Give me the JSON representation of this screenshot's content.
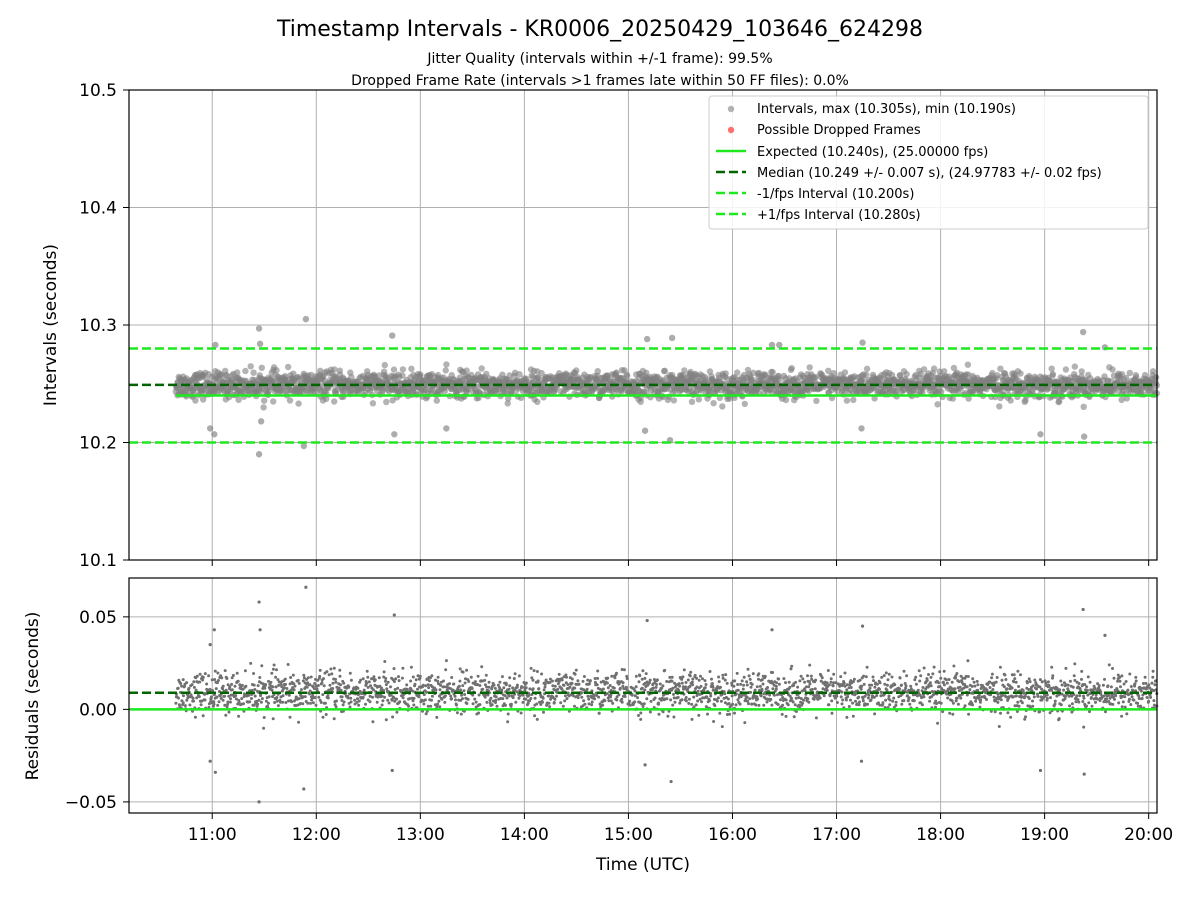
{
  "chart_data": [
    {
      "type": "scatter",
      "title": "Timestamp Intervals - KR0006_20250429_103646_624298",
      "subtitle": [
        "Jitter Quality (intervals within +/-1 frame): 99.5%",
        "Dropped Frame Rate (intervals >1 frames late within 50 FF files): 0.0%"
      ],
      "xlabel": "",
      "ylabel": "Intervals (seconds)",
      "x_time_range_hours": [
        10.2,
        20.08
      ],
      "xticks": [
        "11:00",
        "12:00",
        "13:00",
        "14:00",
        "15:00",
        "16:00",
        "17:00",
        "18:00",
        "19:00",
        "20:00"
      ],
      "ylim": [
        10.1,
        10.5
      ],
      "yticks": [
        "10.1",
        "10.2",
        "10.3",
        "10.4",
        "10.5"
      ],
      "grid": true,
      "legend_position": "top-right",
      "legend": [
        "Intervals, max (10.305s), min (10.190s)",
        "Possible Dropped Frames",
        "Expected (10.240s), (25.00000 fps)",
        "Median (10.249 +/- 0.007 s), (24.97783 +/- 0.02 fps)",
        "-1/fps Interval (10.200s)",
        "+1/fps Interval (10.280s)"
      ],
      "lines": {
        "expected": 10.24,
        "median": 10.249,
        "lower": 10.2,
        "upper": 10.28
      },
      "series": [
        {
          "name": "Intervals",
          "color": "#808080",
          "summary": {
            "start_hour": 10.65,
            "end_hour": 20.08,
            "max": 10.305,
            "min": 10.19,
            "median": 10.249
          },
          "outliers": [
            {
              "x": 10.98,
              "y": 10.212
            },
            {
              "x": 11.02,
              "y": 10.207
            },
            {
              "x": 11.03,
              "y": 10.283
            },
            {
              "x": 11.45,
              "y": 10.297
            },
            {
              "x": 11.46,
              "y": 10.284
            },
            {
              "x": 11.45,
              "y": 10.19
            },
            {
              "x": 11.47,
              "y": 10.218
            },
            {
              "x": 11.9,
              "y": 10.305
            },
            {
              "x": 11.88,
              "y": 10.197
            },
            {
              "x": 12.73,
              "y": 10.291
            },
            {
              "x": 12.75,
              "y": 10.207
            },
            {
              "x": 13.25,
              "y": 10.212
            },
            {
              "x": 15.18,
              "y": 10.288
            },
            {
              "x": 15.16,
              "y": 10.21
            },
            {
              "x": 15.42,
              "y": 10.289
            },
            {
              "x": 15.4,
              "y": 10.202
            },
            {
              "x": 16.38,
              "y": 10.283
            },
            {
              "x": 16.45,
              "y": 10.283
            },
            {
              "x": 17.25,
              "y": 10.285
            },
            {
              "x": 17.24,
              "y": 10.212
            },
            {
              "x": 19.37,
              "y": 10.294
            },
            {
              "x": 19.38,
              "y": 10.205
            },
            {
              "x": 18.96,
              "y": 10.207
            },
            {
              "x": 19.58,
              "y": 10.281
            }
          ]
        },
        {
          "name": "Possible Dropped Frames",
          "color": "#ff6060",
          "values": []
        }
      ]
    },
    {
      "type": "scatter",
      "title": "",
      "xlabel": "Time (UTC)",
      "ylabel": "Residuals (seconds)",
      "ylim": [
        -0.056,
        0.071
      ],
      "yticks": [
        "−0.05",
        "0.00",
        "0.05"
      ],
      "xticks": [
        "11:00",
        "12:00",
        "13:00",
        "14:00",
        "15:00",
        "16:00",
        "17:00",
        "18:00",
        "19:00",
        "20:00"
      ],
      "grid": true,
      "lines": {
        "zero": 0.0,
        "median": 0.009
      },
      "series": [
        {
          "name": "Residuals",
          "color": "#707070",
          "summary": {
            "max": 0.066,
            "min": -0.05
          },
          "outliers": [
            {
              "x": 11.45,
              "y": 0.058
            },
            {
              "x": 11.9,
              "y": 0.066
            },
            {
              "x": 11.46,
              "y": 0.043
            },
            {
              "x": 11.45,
              "y": -0.05
            },
            {
              "x": 11.88,
              "y": -0.043
            },
            {
              "x": 11.02,
              "y": 0.043
            },
            {
              "x": 10.98,
              "y": 0.035
            },
            {
              "x": 10.98,
              "y": -0.028
            },
            {
              "x": 11.03,
              "y": -0.034
            },
            {
              "x": 12.75,
              "y": 0.051
            },
            {
              "x": 12.73,
              "y": -0.033
            },
            {
              "x": 15.18,
              "y": 0.048
            },
            {
              "x": 15.41,
              "y": -0.039
            },
            {
              "x": 15.16,
              "y": -0.03
            },
            {
              "x": 16.38,
              "y": 0.043
            },
            {
              "x": 17.25,
              "y": 0.045
            },
            {
              "x": 17.24,
              "y": -0.028
            },
            {
              "x": 19.37,
              "y": 0.054
            },
            {
              "x": 19.38,
              "y": -0.035
            },
            {
              "x": 18.96,
              "y": -0.033
            },
            {
              "x": 19.58,
              "y": 0.04
            }
          ]
        }
      ]
    }
  ]
}
